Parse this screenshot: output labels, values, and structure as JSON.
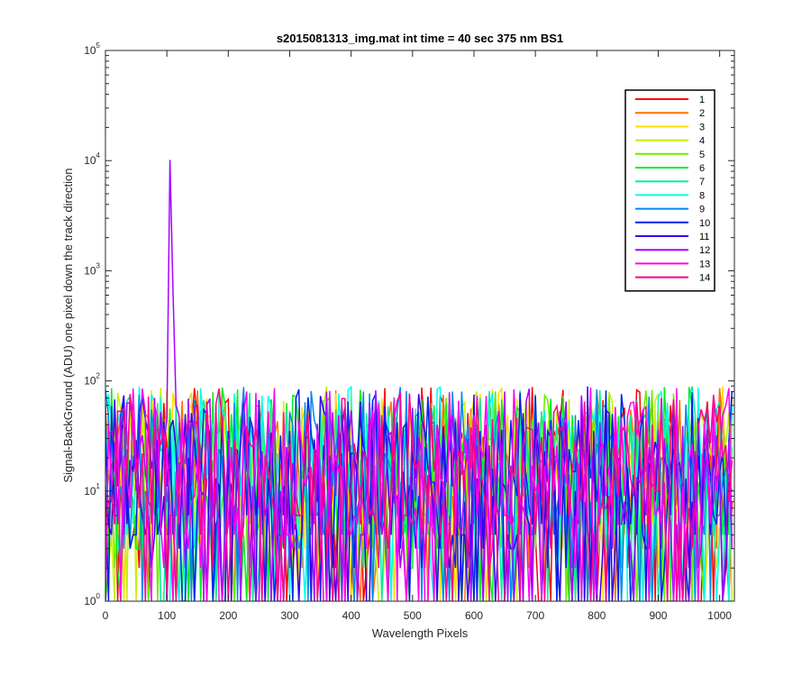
{
  "chart_data": {
    "type": "line",
    "title": "s2015081313_img.mat int time = 40 sec  375 nm BS1",
    "xlabel": "Wavelength Pixels",
    "ylabel": "Signal-BackGround (ADU) one pixel down the track direction",
    "xlim": [
      0,
      1024
    ],
    "ylim": [
      1,
      100000
    ],
    "yscale": "log",
    "grid": false,
    "legend_position": "top-right",
    "x_ticks": [
      {
        "label": "0",
        "value": 0
      },
      {
        "label": "100",
        "value": 100
      },
      {
        "label": "200",
        "value": 200
      },
      {
        "label": "300",
        "value": 300
      },
      {
        "label": "400",
        "value": 400
      },
      {
        "label": "500",
        "value": 500
      },
      {
        "label": "600",
        "value": 600
      },
      {
        "label": "700",
        "value": 700
      },
      {
        "label": "800",
        "value": 800
      },
      {
        "label": "900",
        "value": 900
      },
      {
        "label": "1000",
        "value": 1000
      }
    ],
    "y_ticks": [
      {
        "base": "10",
        "exp": "0",
        "value": 1
      },
      {
        "base": "10",
        "exp": "1",
        "value": 10
      },
      {
        "base": "10",
        "exp": "2",
        "value": 100
      },
      {
        "base": "10",
        "exp": "3",
        "value": 1000
      },
      {
        "base": "10",
        "exp": "4",
        "value": 10000
      },
      {
        "base": "10",
        "exp": "5",
        "value": 100000
      }
    ],
    "series": [
      {
        "name": "1",
        "color": "#ff0000"
      },
      {
        "name": "2",
        "color": "#ff6f00"
      },
      {
        "name": "3",
        "color": "#ffdd00"
      },
      {
        "name": "4",
        "color": "#c8f000"
      },
      {
        "name": "5",
        "color": "#66ee00"
      },
      {
        "name": "6",
        "color": "#00ee22"
      },
      {
        "name": "7",
        "color": "#00ee99"
      },
      {
        "name": "8",
        "color": "#00ffee"
      },
      {
        "name": "9",
        "color": "#0088ee"
      },
      {
        "name": "10",
        "color": "#0022ee"
      },
      {
        "name": "11",
        "color": "#3300ee"
      },
      {
        "name": "12",
        "color": "#aa00ff"
      },
      {
        "name": "13",
        "color": "#ff00ee"
      },
      {
        "name": "14",
        "color": "#ff0088"
      }
    ],
    "peak": {
      "series": "12",
      "x": 106,
      "y": 25500
    },
    "noise_range": [
      1,
      120
    ]
  }
}
